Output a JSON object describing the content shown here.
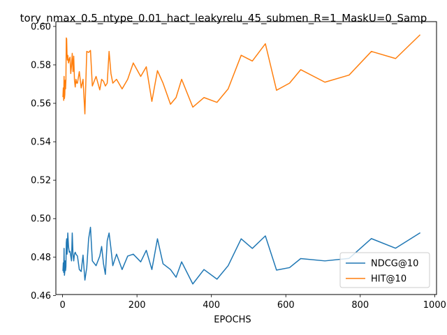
{
  "chart_data": {
    "type": "line",
    "title": "tory_nmax_0.5_ntype_0.01_hact_leakyrelu_45_submen_R=1_MaskU=0_Samp",
    "xlabel": "EPOCHS",
    "ylabel": "",
    "xlim": [
      -18,
      1005
    ],
    "ylim": [
      0.4605,
      0.6025
    ],
    "xticks": [
      0,
      200,
      400,
      600,
      800,
      1000
    ],
    "xtick_labels": [
      "0",
      "200",
      "400",
      "600",
      "800",
      "1000"
    ],
    "yticks": [
      0.46,
      0.48,
      0.5,
      0.52,
      0.54,
      0.56,
      0.58,
      0.6
    ],
    "ytick_labels": [
      "0.46",
      "0.48",
      "0.50",
      "0.52",
      "0.54",
      "0.56",
      "0.58",
      "0.60"
    ],
    "grid": false,
    "legend_position": "lower-right",
    "series": [
      {
        "name": "NDCG@10",
        "color": "#1f77b4",
        "x": [
          1,
          2,
          3,
          4,
          5,
          6,
          7,
          8,
          9,
          10,
          11,
          12,
          13,
          14,
          16,
          18,
          20,
          22,
          24,
          26,
          28,
          30,
          32,
          34,
          36,
          38,
          40,
          45,
          50,
          55,
          60,
          65,
          70,
          75,
          80,
          90,
          100,
          105,
          110,
          115,
          120,
          125,
          130,
          135,
          145,
          160,
          175,
          190,
          210,
          225,
          240,
          255,
          270,
          290,
          305,
          320,
          350,
          380,
          415,
          445,
          480,
          510,
          545,
          575,
          610,
          640,
          705,
          770,
          830,
          895,
          960
        ],
        "y": [
          0.473,
          0.477,
          0.472,
          0.4845,
          0.4705,
          0.4725,
          0.478,
          0.473,
          0.475,
          0.4875,
          0.4895,
          0.4815,
          0.4845,
          0.4925,
          0.4855,
          0.4825,
          0.483,
          0.4805,
          0.478,
          0.4925,
          0.4815,
          0.478,
          0.4815,
          0.4825,
          0.4815,
          0.481,
          0.4805,
          0.4735,
          0.4725,
          0.481,
          0.468,
          0.4745,
          0.4895,
          0.4955,
          0.478,
          0.4755,
          0.4805,
          0.4855,
          0.4765,
          0.471,
          0.4885,
          0.4925,
          0.4845,
          0.4755,
          0.4815,
          0.4735,
          0.4805,
          0.4815,
          0.4775,
          0.4835,
          0.4735,
          0.4895,
          0.4765,
          0.4735,
          0.4695,
          0.4775,
          0.466,
          0.4735,
          0.4685,
          0.4755,
          0.4895,
          0.4845,
          0.491,
          0.4732,
          0.4745,
          0.4792,
          0.478,
          0.4793,
          0.4896,
          0.4846,
          0.4925
        ]
      },
      {
        "name": "HIT@10",
        "color": "#ff7f0e",
        "x": [
          1,
          2,
          3,
          4,
          5,
          6,
          7,
          8,
          9,
          10,
          11,
          12,
          13,
          14,
          16,
          18,
          20,
          22,
          24,
          26,
          28,
          30,
          32,
          34,
          36,
          38,
          40,
          45,
          50,
          55,
          60,
          65,
          70,
          75,
          80,
          90,
          100,
          105,
          110,
          115,
          120,
          125,
          130,
          135,
          145,
          160,
          175,
          190,
          210,
          225,
          240,
          255,
          270,
          290,
          305,
          320,
          350,
          380,
          415,
          445,
          480,
          510,
          545,
          575,
          610,
          640,
          705,
          770,
          830,
          895,
          960
        ],
        "y": [
          0.5635,
          0.568,
          0.5615,
          0.574,
          0.5625,
          0.5645,
          0.572,
          0.5675,
          0.572,
          0.594,
          0.5935,
          0.5855,
          0.5825,
          0.585,
          0.581,
          0.583,
          0.584,
          0.5755,
          0.5795,
          0.586,
          0.5765,
          0.5845,
          0.572,
          0.5685,
          0.5725,
          0.5705,
          0.5705,
          0.5765,
          0.568,
          0.5725,
          0.5545,
          0.587,
          0.5865,
          0.5875,
          0.569,
          0.574,
          0.567,
          0.5725,
          0.5715,
          0.569,
          0.5705,
          0.587,
          0.5755,
          0.5705,
          0.5725,
          0.5675,
          0.5725,
          0.581,
          0.574,
          0.579,
          0.561,
          0.577,
          0.5705,
          0.5595,
          0.563,
          0.5725,
          0.558,
          0.563,
          0.5605,
          0.5675,
          0.585,
          0.582,
          0.591,
          0.5668,
          0.5705,
          0.5775,
          0.571,
          0.5747,
          0.587,
          0.5833,
          0.5955
        ]
      }
    ]
  }
}
